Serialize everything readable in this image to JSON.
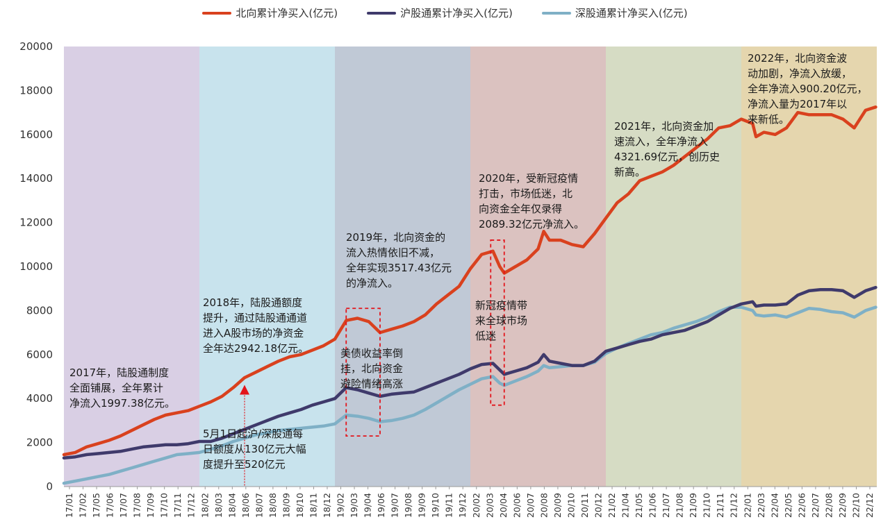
{
  "chart_data": {
    "type": "line",
    "title": "",
    "xlabel": "",
    "ylabel": "",
    "ylim": [
      0,
      20000
    ],
    "yticks": [
      0,
      2000,
      4000,
      6000,
      8000,
      10000,
      12000,
      14000,
      16000,
      18000,
      20000
    ],
    "x_start": "2017-01",
    "x_end": "2022-12",
    "x_tick_labels": [
      "17/01",
      "17/02",
      "17/05",
      "17/06",
      "17/07",
      "17/08",
      "17/09",
      "17/10",
      "17/11",
      "17/12",
      "18/02",
      "18/03",
      "18/04",
      "18/06",
      "18/07",
      "18/08",
      "18/09",
      "18/10",
      "18/11",
      "18/12",
      "19/02",
      "19/03",
      "19/04",
      "19/06",
      "19/07",
      "19/08",
      "19/09",
      "19/10",
      "19/11",
      "19/12",
      "20/02",
      "20/03",
      "20/04",
      "20/06",
      "20/07",
      "20/08",
      "20/09",
      "20/10",
      "20/11",
      "20/12",
      "21/02",
      "21/04",
      "21/05",
      "21/06",
      "21/07",
      "21/08",
      "21/09",
      "21/10",
      "21/11",
      "21/12",
      "22/01",
      "22/03",
      "22/04",
      "22/05",
      "22/06",
      "22/07",
      "22/08",
      "22/09",
      "22/10",
      "22/12"
    ],
    "legend_position": "top-center",
    "series": [
      {
        "name": "北向累计净买入(亿元)",
        "color": "#d9411e",
        "points": [
          [
            0,
            1450
          ],
          [
            1,
            1550
          ],
          [
            2,
            1800
          ],
          [
            3,
            1950
          ],
          [
            4,
            2100
          ],
          [
            5,
            2300
          ],
          [
            6,
            2550
          ],
          [
            7,
            2800
          ],
          [
            8,
            3050
          ],
          [
            9,
            3250
          ],
          [
            10,
            3350
          ],
          [
            11,
            3450
          ],
          [
            12,
            3650
          ],
          [
            13,
            3850
          ],
          [
            14,
            4100
          ],
          [
            15,
            4500
          ],
          [
            16,
            4950
          ],
          [
            17,
            5200
          ],
          [
            18,
            5450
          ],
          [
            19,
            5700
          ],
          [
            20,
            5900
          ],
          [
            21,
            6000
          ],
          [
            22,
            6200
          ],
          [
            23,
            6400
          ],
          [
            24,
            6700
          ],
          [
            25,
            7550
          ],
          [
            26,
            7650
          ],
          [
            27,
            7500
          ],
          [
            28,
            7000
          ],
          [
            29,
            7150
          ],
          [
            30,
            7300
          ],
          [
            31,
            7500
          ],
          [
            32,
            7800
          ],
          [
            33,
            8300
          ],
          [
            34,
            8700
          ],
          [
            35,
            9100
          ],
          [
            36,
            9900
          ],
          [
            37,
            10550
          ],
          [
            38,
            10700
          ],
          [
            38.6,
            10000
          ],
          [
            39,
            9700
          ],
          [
            40,
            10000
          ],
          [
            41,
            10300
          ],
          [
            42,
            10800
          ],
          [
            42.5,
            11600
          ],
          [
            43,
            11200
          ],
          [
            44,
            11200
          ],
          [
            45,
            11000
          ],
          [
            46,
            10900
          ],
          [
            47,
            11500
          ],
          [
            48,
            12200
          ],
          [
            49,
            12900
          ],
          [
            50,
            13300
          ],
          [
            51,
            13900
          ],
          [
            52,
            14100
          ],
          [
            53,
            14300
          ],
          [
            54,
            14600
          ],
          [
            55,
            15000
          ],
          [
            56,
            15400
          ],
          [
            57,
            15800
          ],
          [
            58,
            16300
          ],
          [
            59,
            16400
          ],
          [
            60,
            16700
          ],
          [
            61,
            16500
          ],
          [
            61.3,
            15900
          ],
          [
            62,
            16100
          ],
          [
            63,
            16000
          ],
          [
            64,
            16300
          ],
          [
            65,
            17000
          ],
          [
            66,
            16900
          ],
          [
            67,
            16900
          ],
          [
            68,
            16900
          ],
          [
            69,
            16700
          ],
          [
            70,
            16300
          ],
          [
            71,
            17100
          ],
          [
            71.9,
            17250
          ]
        ]
      },
      {
        "name": "沪股通累计净买入(亿元)",
        "color": "#3f3a6b",
        "points": [
          [
            0,
            1300
          ],
          [
            1,
            1350
          ],
          [
            2,
            1450
          ],
          [
            3,
            1500
          ],
          [
            4,
            1550
          ],
          [
            5,
            1600
          ],
          [
            6,
            1700
          ],
          [
            7,
            1800
          ],
          [
            8,
            1850
          ],
          [
            9,
            1900
          ],
          [
            10,
            1900
          ],
          [
            11,
            1950
          ],
          [
            12,
            2050
          ],
          [
            13,
            2050
          ],
          [
            14,
            2200
          ],
          [
            15,
            2400
          ],
          [
            16,
            2600
          ],
          [
            17,
            2800
          ],
          [
            18,
            3000
          ],
          [
            19,
            3200
          ],
          [
            20,
            3350
          ],
          [
            21,
            3500
          ],
          [
            22,
            3700
          ],
          [
            23,
            3850
          ],
          [
            24,
            4000
          ],
          [
            25,
            4500
          ],
          [
            26,
            4400
          ],
          [
            27,
            4250
          ],
          [
            28,
            4100
          ],
          [
            29,
            4200
          ],
          [
            30,
            4250
          ],
          [
            31,
            4300
          ],
          [
            32,
            4500
          ],
          [
            33,
            4700
          ],
          [
            34,
            4900
          ],
          [
            35,
            5100
          ],
          [
            36,
            5350
          ],
          [
            37,
            5550
          ],
          [
            38,
            5600
          ],
          [
            38.6,
            5300
          ],
          [
            39,
            5100
          ],
          [
            40,
            5250
          ],
          [
            41,
            5400
          ],
          [
            42,
            5650
          ],
          [
            42.5,
            6000
          ],
          [
            43,
            5700
          ],
          [
            44,
            5600
          ],
          [
            45,
            5500
          ],
          [
            46,
            5500
          ],
          [
            47,
            5700
          ],
          [
            48,
            6150
          ],
          [
            49,
            6300
          ],
          [
            50,
            6450
          ],
          [
            51,
            6600
          ],
          [
            52,
            6700
          ],
          [
            53,
            6900
          ],
          [
            54,
            7000
          ],
          [
            55,
            7100
          ],
          [
            56,
            7300
          ],
          [
            57,
            7500
          ],
          [
            58,
            7800
          ],
          [
            59,
            8100
          ],
          [
            60,
            8300
          ],
          [
            61,
            8400
          ],
          [
            61.3,
            8200
          ],
          [
            62,
            8250
          ],
          [
            63,
            8250
          ],
          [
            64,
            8300
          ],
          [
            65,
            8700
          ],
          [
            66,
            8900
          ],
          [
            67,
            8950
          ],
          [
            68,
            8950
          ],
          [
            69,
            8900
          ],
          [
            70,
            8600
          ],
          [
            71,
            8900
          ],
          [
            71.9,
            9050
          ]
        ]
      },
      {
        "name": "深股通累计净买入(亿元)",
        "color": "#7fb0c6",
        "points": [
          [
            0,
            150
          ],
          [
            1,
            250
          ],
          [
            2,
            350
          ],
          [
            3,
            450
          ],
          [
            4,
            550
          ],
          [
            5,
            700
          ],
          [
            6,
            850
          ],
          [
            7,
            1000
          ],
          [
            8,
            1150
          ],
          [
            9,
            1300
          ],
          [
            10,
            1450
          ],
          [
            11,
            1500
          ],
          [
            12,
            1550
          ],
          [
            13,
            1700
          ],
          [
            14,
            1850
          ],
          [
            15,
            2050
          ],
          [
            16,
            2200
          ],
          [
            17,
            2350
          ],
          [
            18,
            2450
          ],
          [
            19,
            2550
          ],
          [
            20,
            2600
          ],
          [
            21,
            2650
          ],
          [
            22,
            2700
          ],
          [
            23,
            2750
          ],
          [
            24,
            2850
          ],
          [
            25,
            3250
          ],
          [
            26,
            3200
          ],
          [
            27,
            3100
          ],
          [
            28,
            2950
          ],
          [
            29,
            3000
          ],
          [
            30,
            3100
          ],
          [
            31,
            3250
          ],
          [
            32,
            3500
          ],
          [
            33,
            3800
          ],
          [
            34,
            4100
          ],
          [
            35,
            4400
          ],
          [
            36,
            4650
          ],
          [
            37,
            4900
          ],
          [
            38,
            5000
          ],
          [
            38.6,
            4700
          ],
          [
            39,
            4600
          ],
          [
            40,
            4800
          ],
          [
            41,
            5000
          ],
          [
            42,
            5250
          ],
          [
            42.5,
            5500
          ],
          [
            43,
            5400
          ],
          [
            44,
            5450
          ],
          [
            45,
            5500
          ],
          [
            46,
            5500
          ],
          [
            47,
            5650
          ],
          [
            48,
            6050
          ],
          [
            49,
            6300
          ],
          [
            50,
            6500
          ],
          [
            51,
            6700
          ],
          [
            52,
            6900
          ],
          [
            53,
            7000
          ],
          [
            54,
            7200
          ],
          [
            55,
            7350
          ],
          [
            56,
            7500
          ],
          [
            57,
            7700
          ],
          [
            58,
            7950
          ],
          [
            59,
            8150
          ],
          [
            60,
            8150
          ],
          [
            61,
            8000
          ],
          [
            61.3,
            7800
          ],
          [
            62,
            7750
          ],
          [
            63,
            7800
          ],
          [
            64,
            7700
          ],
          [
            65,
            7900
          ],
          [
            66,
            8100
          ],
          [
            67,
            8050
          ],
          [
            68,
            7950
          ],
          [
            69,
            7900
          ],
          [
            70,
            7700
          ],
          [
            71,
            8000
          ],
          [
            71.9,
            8150
          ]
        ]
      }
    ],
    "year_bands": [
      {
        "year": "2017",
        "from": 0,
        "to": 12,
        "color": "#d9cfe4"
      },
      {
        "year": "2018",
        "from": 12,
        "to": 24,
        "color": "#c8e3ed"
      },
      {
        "year": "2019",
        "from": 24,
        "to": 36,
        "color": "#c0c9d6"
      },
      {
        "year": "2020",
        "from": 36,
        "to": 48,
        "color": "#dbc2c0"
      },
      {
        "year": "2021",
        "from": 48,
        "to": 60,
        "color": "#d6dcc4"
      },
      {
        "year": "2022",
        "from": 60,
        "to": 72,
        "color": "#e5d6ae"
      }
    ],
    "highlights": [
      {
        "name": "2019-bond-box",
        "from": 25,
        "to": 28,
        "y_min": 2300,
        "y_max": 8100
      },
      {
        "name": "2020-covid-box",
        "from": 37.8,
        "to": 39,
        "y_min": 3700,
        "y_max": 11200
      }
    ],
    "marker": {
      "x": 16,
      "y": 4400,
      "label": "5月1日起沪/深股通每日额度从130亿元大幅度提升至520亿元"
    },
    "annotations": [
      {
        "id": "a2017",
        "text": "2017年，陆股通制度\n全面铺展，全年累计\n净流入1997.38亿元。"
      },
      {
        "id": "a2018",
        "text": "2018年，陆股通额度\n提升，通过陆股通通道\n进入A股市场的净资金\n全年达2942.18亿元。"
      },
      {
        "id": "a2018b",
        "text": "5月1日起沪/深股通每\n日额度从130亿元大幅\n度提升至520亿元"
      },
      {
        "id": "a2019",
        "text": "2019年，北向资金的\n流入热情依旧不减，\n全年实现3517.43亿元\n的净流入。"
      },
      {
        "id": "a2019b",
        "text": "美债收益率倒\n挂，北向资金\n避险情绪高涨"
      },
      {
        "id": "a2020",
        "text": "2020年，受新冠疫情\n打击，市场低迷，北\n向资金全年仅录得\n2089.32亿元净流入。"
      },
      {
        "id": "a2020b",
        "text": "新冠疫情带\n来全球市场\n低迷"
      },
      {
        "id": "a2021",
        "text": "2021年，北向资金加\n速流入，全年净流入\n4321.69亿元，创历史\n新高。"
      },
      {
        "id": "a2022",
        "text": "2022年，北向资金波\n动加剧，净流入放缓，\n全年净流入900.20亿元，\n净流入量为2017年以\n来新低。"
      }
    ]
  }
}
